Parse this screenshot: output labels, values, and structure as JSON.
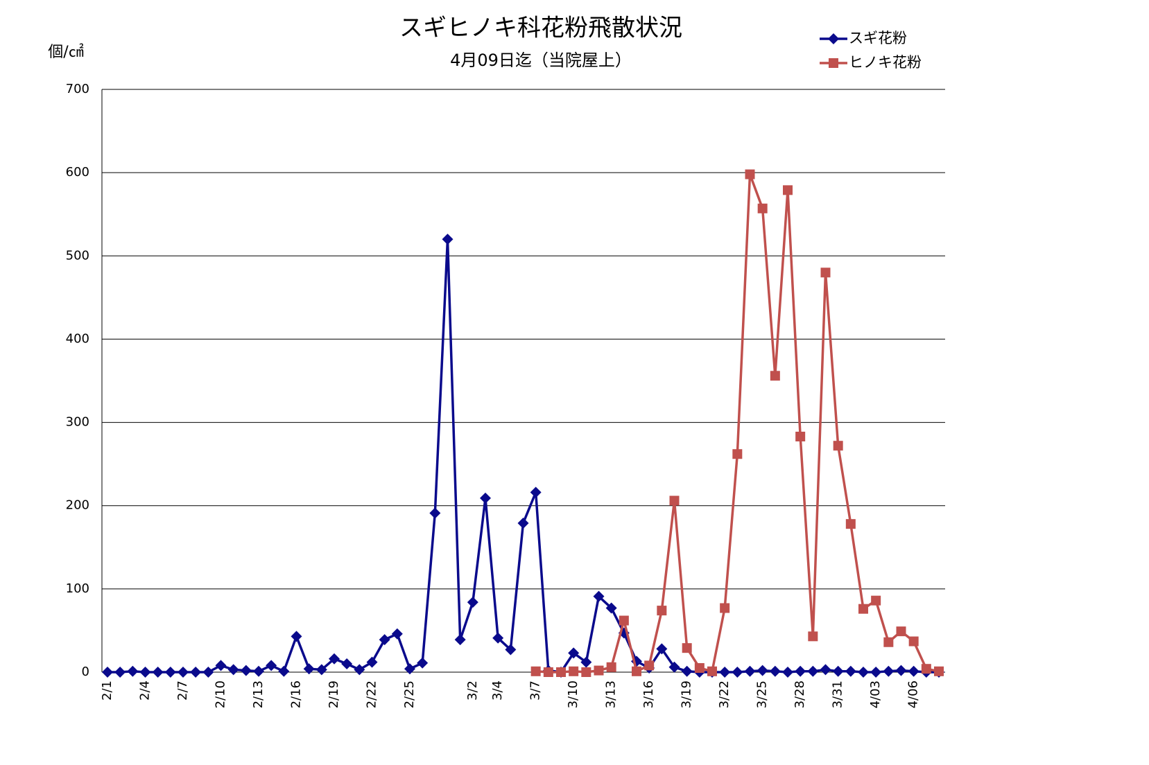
{
  "chart_data": {
    "type": "line",
    "title": "スギヒノキ科花粉飛散状況",
    "subtitle": "4月09日迄（当院屋上）",
    "y_label": "個/㎠",
    "categories": [
      "2/1",
      null,
      null,
      "2/4",
      null,
      null,
      "2/7",
      null,
      null,
      "2/10",
      null,
      null,
      "2/13",
      null,
      null,
      "2/16",
      null,
      null,
      "2/19",
      null,
      null,
      "2/22",
      null,
      null,
      "2/25",
      null,
      null,
      null,
      null,
      "3/2",
      null,
      "3/4",
      null,
      null,
      "3/7",
      null,
      null,
      "3/10",
      null,
      null,
      "3/13",
      null,
      null,
      "3/16",
      null,
      null,
      "3/19",
      null,
      null,
      "3/22",
      null,
      null,
      "3/25",
      null,
      null,
      "3/28",
      null,
      null,
      "3/31",
      null,
      null,
      "4/03",
      null,
      null,
      "4/06",
      null,
      null
    ],
    "series": [
      {
        "name": "スギ花粉",
        "color": "#0a0a8c",
        "marker": "diamond",
        "values": [
          0,
          0,
          1,
          0,
          0,
          0,
          0,
          0,
          0,
          8,
          3,
          2,
          1,
          8,
          1,
          43,
          4,
          3,
          16,
          10,
          3,
          12,
          39,
          46,
          4,
          11,
          191,
          520,
          39,
          84,
          209,
          41,
          27,
          179,
          216,
          2,
          0,
          23,
          12,
          91,
          77,
          47,
          13,
          5,
          28,
          6,
          1,
          0,
          0,
          0,
          0,
          1,
          2,
          1,
          0,
          1,
          1,
          3,
          1,
          1,
          0,
          0,
          1,
          2,
          1,
          0,
          0
        ]
      },
      {
        "name": "ヒノキ花粉",
        "color": "#c0504d",
        "marker": "square",
        "values": [
          null,
          null,
          null,
          null,
          null,
          null,
          null,
          null,
          null,
          null,
          null,
          null,
          null,
          null,
          null,
          null,
          null,
          null,
          null,
          null,
          null,
          null,
          null,
          null,
          null,
          null,
          null,
          null,
          null,
          null,
          null,
          null,
          null,
          null,
          1,
          0,
          0,
          1,
          0,
          2,
          6,
          62,
          1,
          8,
          74,
          206,
          29,
          5,
          1,
          77,
          262,
          598,
          557,
          356,
          579,
          283,
          43,
          480,
          272,
          178,
          76,
          86,
          36,
          49,
          37,
          4,
          1
        ]
      }
    ],
    "ylim": [
      0,
      700
    ],
    "yticks": [
      0,
      100,
      200,
      300,
      400,
      500,
      600,
      700
    ],
    "grid": true,
    "legend": "top-right"
  }
}
